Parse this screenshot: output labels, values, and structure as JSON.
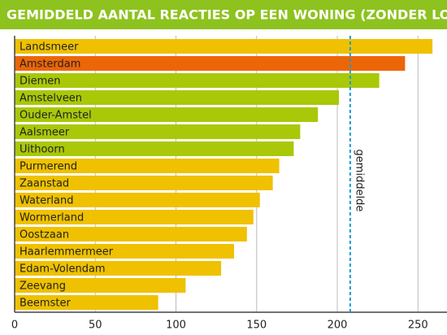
{
  "chart_data": {
    "type": "bar",
    "orientation": "horizontal",
    "title": "GEMIDDELD AANTAL REACTIES OP EEN WONING (ZONDER LOTING)",
    "categories": [
      "Landsmeer",
      "Amsterdam",
      "Diemen",
      "Amstelveen",
      "Ouder-Amstel",
      "Aalsmeer",
      "Uithoorn",
      "Purmerend",
      "Zaanstad",
      "Waterland",
      "Wormerland",
      "Oostzaan",
      "Haarlemmermeer",
      "Edam-Volendam",
      "Zeevang",
      "Beemster"
    ],
    "values": [
      259,
      242,
      226,
      201,
      188,
      177,
      173,
      164,
      160,
      152,
      148,
      144,
      136,
      128,
      106,
      89
    ],
    "colors": [
      "#efc100",
      "#ec6608",
      "#a9c808",
      "#a9c808",
      "#a9c808",
      "#a9c808",
      "#a9c808",
      "#efc100",
      "#efc100",
      "#efc100",
      "#efc100",
      "#efc100",
      "#efc100",
      "#efc100",
      "#efc100",
      "#efc100"
    ],
    "xlim": [
      0,
      268
    ],
    "xticks": [
      0,
      50,
      100,
      150,
      200,
      250
    ],
    "grid": true,
    "reference_line": {
      "value": 208,
      "label": "gemiddelde",
      "color": "#1a9bd7"
    }
  }
}
